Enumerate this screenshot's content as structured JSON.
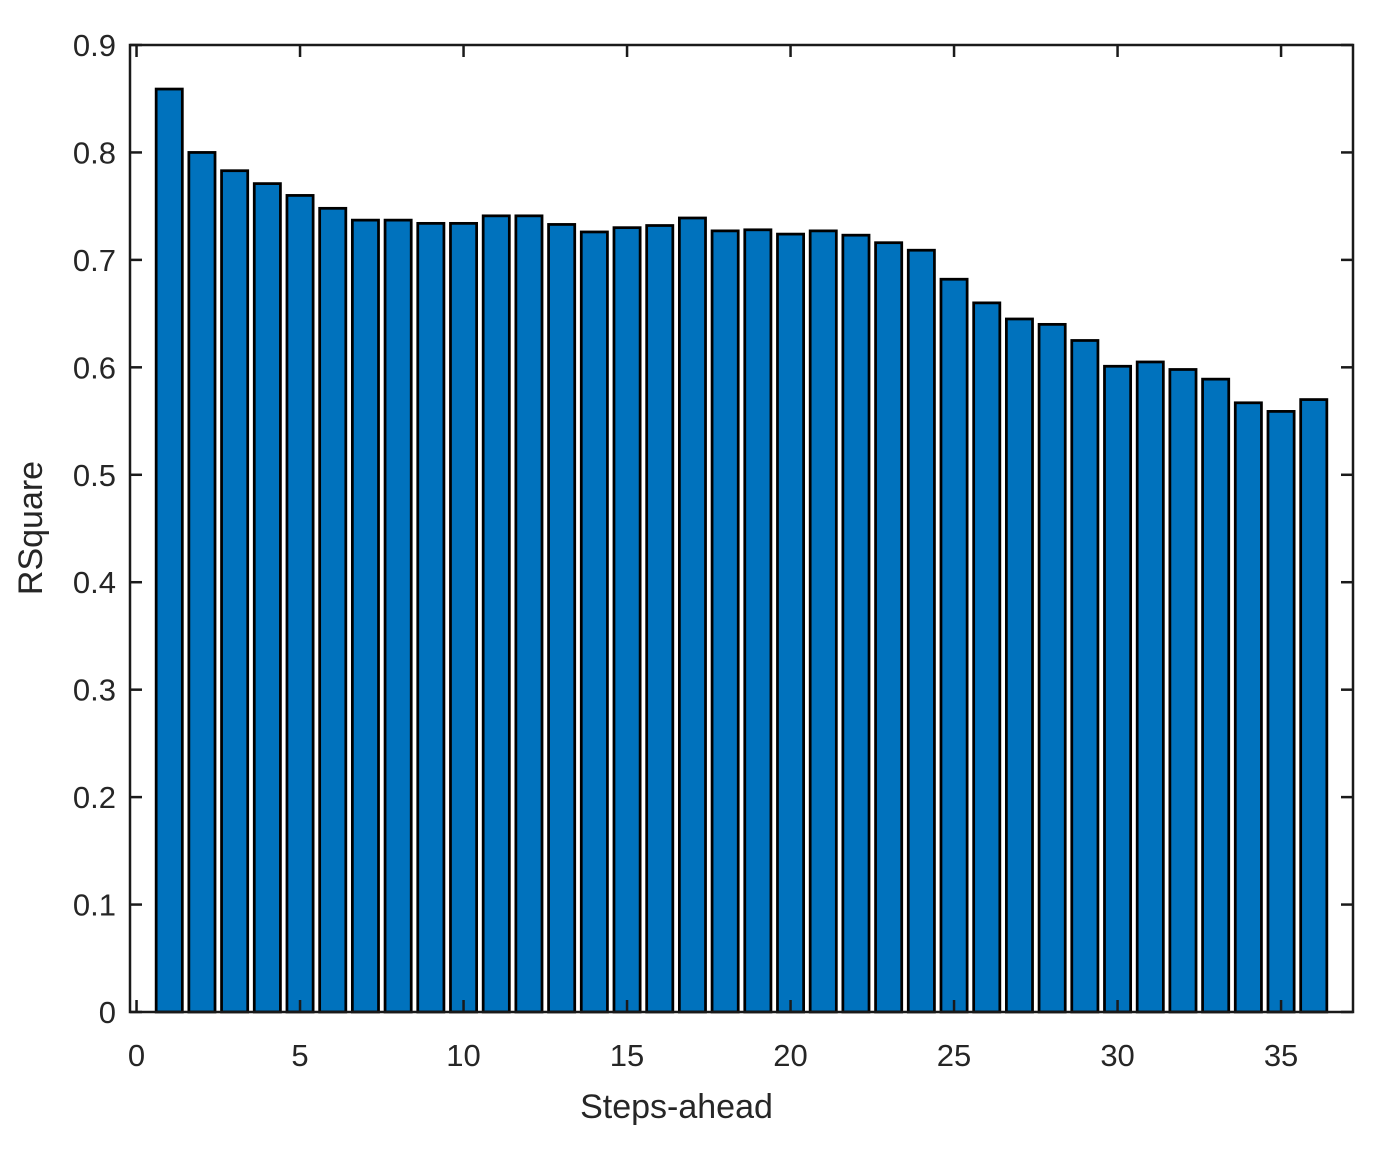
{
  "figure": {
    "background": "#ffffff"
  },
  "chart_data": {
    "type": "bar",
    "title": "",
    "xlabel": "Steps-ahead",
    "ylabel": "RSquare",
    "x": [
      1,
      2,
      3,
      4,
      5,
      6,
      7,
      8,
      9,
      10,
      11,
      12,
      13,
      14,
      15,
      16,
      17,
      18,
      19,
      20,
      21,
      22,
      23,
      24,
      25,
      26,
      27,
      28,
      29,
      30,
      31,
      32,
      33,
      34,
      35,
      36
    ],
    "values": [
      0.859,
      0.8,
      0.783,
      0.771,
      0.76,
      0.748,
      0.737,
      0.737,
      0.734,
      0.734,
      0.741,
      0.741,
      0.733,
      0.726,
      0.73,
      0.732,
      0.739,
      0.727,
      0.728,
      0.724,
      0.727,
      0.723,
      0.716,
      0.709,
      0.682,
      0.66,
      0.645,
      0.64,
      0.625,
      0.601,
      0.605,
      0.598,
      0.589,
      0.567,
      0.559,
      0.57
    ],
    "xlim": [
      -0.2,
      37.2
    ],
    "ylim": [
      0,
      0.9
    ],
    "xticks": [
      0,
      5,
      10,
      15,
      20,
      25,
      30,
      35
    ],
    "xtick_labels": [
      "0",
      "5",
      "10",
      "15",
      "20",
      "25",
      "30",
      "35"
    ],
    "yticks": [
      0,
      0.1,
      0.2,
      0.3,
      0.4,
      0.5,
      0.6,
      0.7,
      0.8,
      0.9
    ],
    "ytick_labels": [
      "0",
      "0.1",
      "0.2",
      "0.3",
      "0.4",
      "0.5",
      "0.6",
      "0.7",
      "0.8",
      "0.9"
    ],
    "bar_width": 0.8,
    "bar_color": "#0072BD",
    "bar_edge_color": "#000000",
    "axis_color": "#1a1a1a",
    "text_color": "#262626",
    "grid": false,
    "box": true,
    "legend": null
  }
}
